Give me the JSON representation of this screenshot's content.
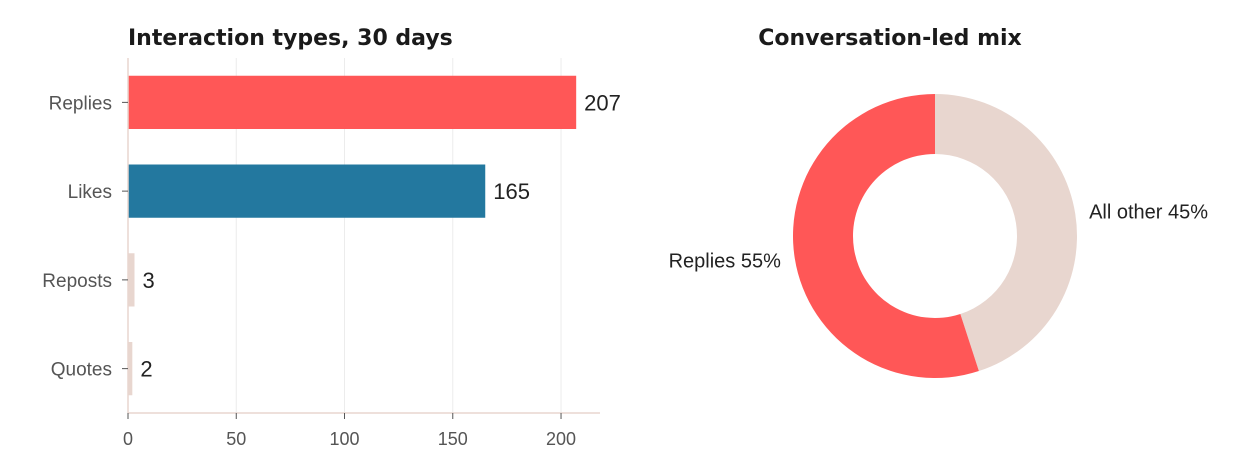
{
  "chart_data": [
    {
      "type": "bar",
      "orientation": "horizontal",
      "title": "Interaction types, 30 days",
      "categories": [
        "Replies",
        "Likes",
        "Reposts",
        "Quotes"
      ],
      "values": [
        207,
        165,
        3,
        2
      ],
      "colors": [
        "#ff5757",
        "#23789f",
        "#e8d6cf",
        "#e8d6cf"
      ],
      "xlim": [
        0,
        218
      ],
      "xticks": [
        0,
        50,
        100,
        150,
        200
      ],
      "grid": true,
      "xlabel": "",
      "ylabel": ""
    },
    {
      "type": "pie",
      "style": "donut",
      "title": "Conversation-led mix",
      "slices": [
        {
          "label": "All other 45%",
          "value": 45,
          "color": "#e8d6cf"
        },
        {
          "label": "Replies 55%",
          "value": 55,
          "color": "#ff5757"
        }
      ]
    }
  ]
}
